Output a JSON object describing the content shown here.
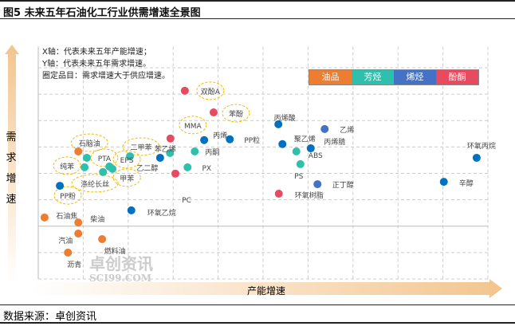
{
  "title": "图5 未来五年石油化工行业供需增速全景图",
  "source": "数据来源：卓创资讯",
  "watermark": {
    "cn": "卓创资讯",
    "en": "SCI99.COM"
  },
  "chart_data": {
    "type": "scatter",
    "title": "图5 未来五年石油化工行业供需增速全景图",
    "xlabel": "产能增速",
    "ylabel": "需求增速",
    "notes": [
      "X轴：代表未来五年产能增速；",
      "Y轴：代表未来五年需求增速。",
      "圈定品目：需求增速大于供应增速。"
    ],
    "xlim": [
      0,
      10
    ],
    "ylim": [
      0,
      8
    ],
    "grid": true,
    "legend_position": "top-right",
    "categories": [
      {
        "name": "油品",
        "color": "#ed7d31"
      },
      {
        "name": "芳烃",
        "color": "#2fc0ad"
      },
      {
        "name": "烯烃",
        "color": "#4472c4"
      },
      {
        "name": "酚酮",
        "color": "#e84a5f"
      }
    ],
    "point_color_blue": "#0070c0",
    "points": [
      {
        "name": "双酚A",
        "cat": 3,
        "x": 3.26,
        "y": 7.13,
        "highlighted": true
      },
      {
        "name": "苯酚",
        "cat": 3,
        "x": 3.9,
        "y": 6.31,
        "highlighted": true
      },
      {
        "name": "MMA",
        "cat": 3,
        "x": 2.94,
        "y": 5.32,
        "highlighted": true
      },
      {
        "name": "丙烯",
        "cat": 2,
        "x": 3.69,
        "y": 5.26
      },
      {
        "name": "PP粒",
        "cat": 2,
        "x": 4.26,
        "y": 5.29
      },
      {
        "name": "苯乙烯",
        "cat": 1,
        "x": 2.93,
        "y": 4.77
      },
      {
        "name": "丙酮",
        "cat": 1,
        "x": 3.48,
        "y": 4.83
      },
      {
        "name": "PX",
        "cat": 1,
        "x": 3.32,
        "y": 4.23
      },
      {
        "name": "乙二醇",
        "cat": 2,
        "x": 2.71,
        "y": 4.59
      },
      {
        "name": "PC",
        "cat": 3,
        "x": 3.05,
        "y": 3.99
      },
      {
        "name": "二甲苯",
        "cat": 1,
        "x": 2.04,
        "y": 4.65,
        "highlighted": true
      },
      {
        "name": "石脑油",
        "cat": 0,
        "x": 0.89,
        "y": 4.83,
        "highlighted": true
      },
      {
        "name": "PTA",
        "cat": 1,
        "x": 1.08,
        "y": 4.59,
        "highlighted": true
      },
      {
        "name": "纯苯",
        "cat": 1,
        "x": 1.03,
        "y": 4.23,
        "highlighted": true
      },
      {
        "name": "EPS",
        "cat": 1,
        "x": 1.65,
        "y": 4.17,
        "highlighted": true
      },
      {
        "name": "涤纶长丝",
        "cat": 1,
        "x": 1.58,
        "y": 4.26,
        "highlighted": true
      },
      {
        "name": "甲苯",
        "cat": 1,
        "x": 1.44,
        "y": 4.05,
        "highlighted": true
      },
      {
        "name": "PP粉",
        "cat": 2,
        "x": 0.48,
        "y": 3.53,
        "highlighted": true
      },
      {
        "name": "石油焦",
        "cat": 0,
        "x": 0.14,
        "y": 2.33
      },
      {
        "name": "柴油",
        "cat": 0,
        "x": 0.89,
        "y": 2.14
      },
      {
        "name": "环氧乙烷",
        "cat": 2,
        "x": 2.07,
        "y": 2.6
      },
      {
        "name": "汽油",
        "cat": 0,
        "x": 0.89,
        "y": 1.72
      },
      {
        "name": "燃料油",
        "cat": 0,
        "x": 1.42,
        "y": 1.51
      },
      {
        "name": "沥青",
        "cat": 0,
        "x": 0.66,
        "y": 1.0
      },
      {
        "name": "乙烯",
        "cat": 2,
        "x": 6.37,
        "y": 5.68
      },
      {
        "name": "丙烯酸",
        "cat": 2,
        "x": 5.34,
        "y": 5.86
      },
      {
        "name": "聚乙烯",
        "cat": 2,
        "x": 5.43,
        "y": 5.11
      },
      {
        "name": "丙烯腈",
        "cat": 2,
        "x": 6.06,
        "y": 4.95
      },
      {
        "name": "ABS",
        "cat": 1,
        "x": 5.74,
        "y": 4.83
      },
      {
        "name": "PS",
        "cat": 1,
        "x": 5.83,
        "y": 4.35
      },
      {
        "name": "正丁醇",
        "cat": 2,
        "x": 6.21,
        "y": 3.59
      },
      {
        "name": "环氧树脂",
        "cat": 3,
        "x": 5.35,
        "y": 3.23
      },
      {
        "name": "环氧丙烷",
        "cat": 2,
        "x": 9.75,
        "y": 4.59
      },
      {
        "name": "辛醇",
        "cat": 2,
        "x": 9.02,
        "y": 3.68
      }
    ]
  }
}
